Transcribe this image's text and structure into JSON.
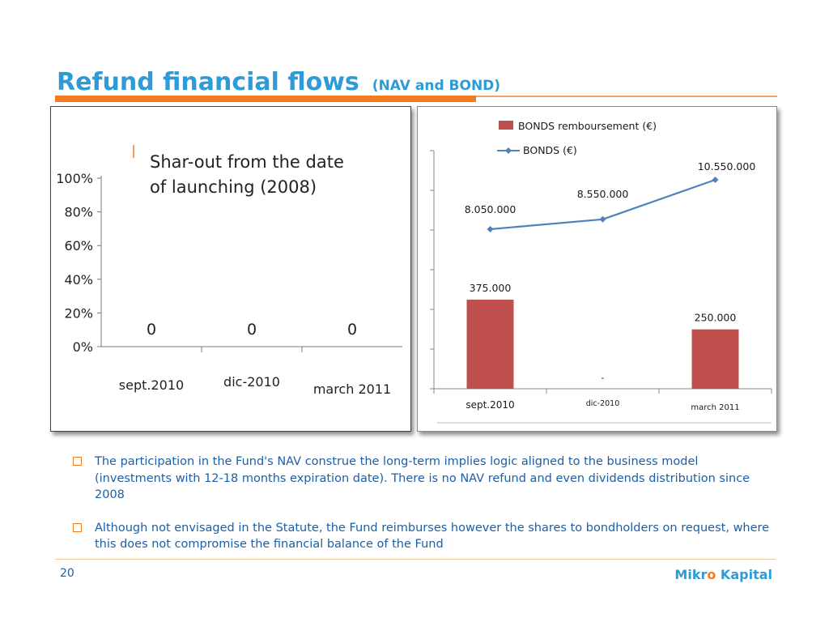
{
  "slide": {
    "title": "Refund financial flows",
    "subtitle": "(NAV and BOND)",
    "page_number": "20",
    "brand_part1": "Mikr",
    "brand_o": "o",
    "brand_part2": " Kapital"
  },
  "colors": {
    "title_blue": "#2f9bd6",
    "accent_orange": "#f47a20",
    "bar_red": "#c0504d",
    "line_blue": "#4f81bd",
    "text_blue": "#1a5fa8"
  },
  "bullets": [
    "The participation in the Fund's NAV construe the long-term implies logic aligned to the business model (investments with 12-18 months expiration date). There is no NAV refund and even dividends distribution since 2008",
    "Although not envisaged in the Statute, the Fund reimburses however the shares to bondholders on request, where this does not compromise the financial balance of the Fund"
  ],
  "chart_data": [
    {
      "type": "bar",
      "title": "Shar-out from the date of launching (2008)",
      "title_lines": [
        "Shar-out from the date",
        "of launching (2008)"
      ],
      "categories": [
        "sept.2010",
        "dic-2010",
        "march 2011"
      ],
      "values": [
        0,
        0,
        0
      ],
      "data_labels": [
        "0",
        "0",
        "0"
      ],
      "yticks": [
        "0%",
        "20%",
        "40%",
        "60%",
        "80%",
        "100%"
      ],
      "ylim": [
        0,
        1
      ],
      "grid": false
    },
    {
      "type": "bar",
      "categories": [
        "sept.2010",
        "dic-2010",
        "march 2011"
      ],
      "legend_position": "top",
      "series": [
        {
          "name": "BONDS remboursement  (€)",
          "type": "bar",
          "values": [
            375000,
            null,
            250000
          ],
          "data_labels": [
            "375.000",
            "-",
            "250.000"
          ],
          "color": "#c0504d"
        },
        {
          "name": "BONDS (€)",
          "type": "line",
          "values": [
            8050000,
            8550000,
            10550000
          ],
          "data_labels": [
            "8.050.000",
            "8.550.000",
            "10.550.000"
          ],
          "color": "#4f81bd"
        }
      ],
      "grid": false
    }
  ]
}
